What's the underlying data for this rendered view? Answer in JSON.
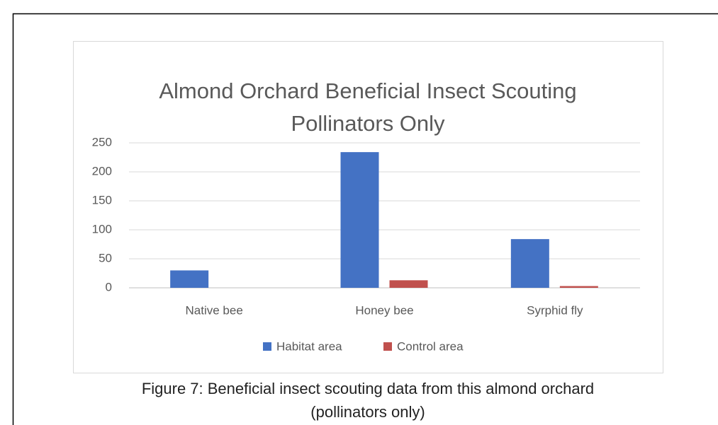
{
  "chart_data": {
    "type": "bar",
    "title": [
      "Almond Orchard Beneficial Insect Scouting",
      "Pollinators Only"
    ],
    "categories": [
      "Native bee",
      "Honey bee",
      "Syrphid fly"
    ],
    "series": [
      {
        "name": "Habitat area",
        "color": "#4472c4",
        "values": [
          30,
          234,
          84
        ]
      },
      {
        "name": "Control area",
        "color": "#c0504d",
        "values": [
          0,
          13,
          3
        ]
      }
    ],
    "ylim": [
      0,
      250
    ],
    "yticks": [
      0,
      50,
      100,
      150,
      200,
      250
    ],
    "grid": true,
    "legend": "bottom",
    "caption": [
      "Figure 7: Beneficial insect scouting data from this almond orchard",
      "(pollinators only)"
    ]
  }
}
